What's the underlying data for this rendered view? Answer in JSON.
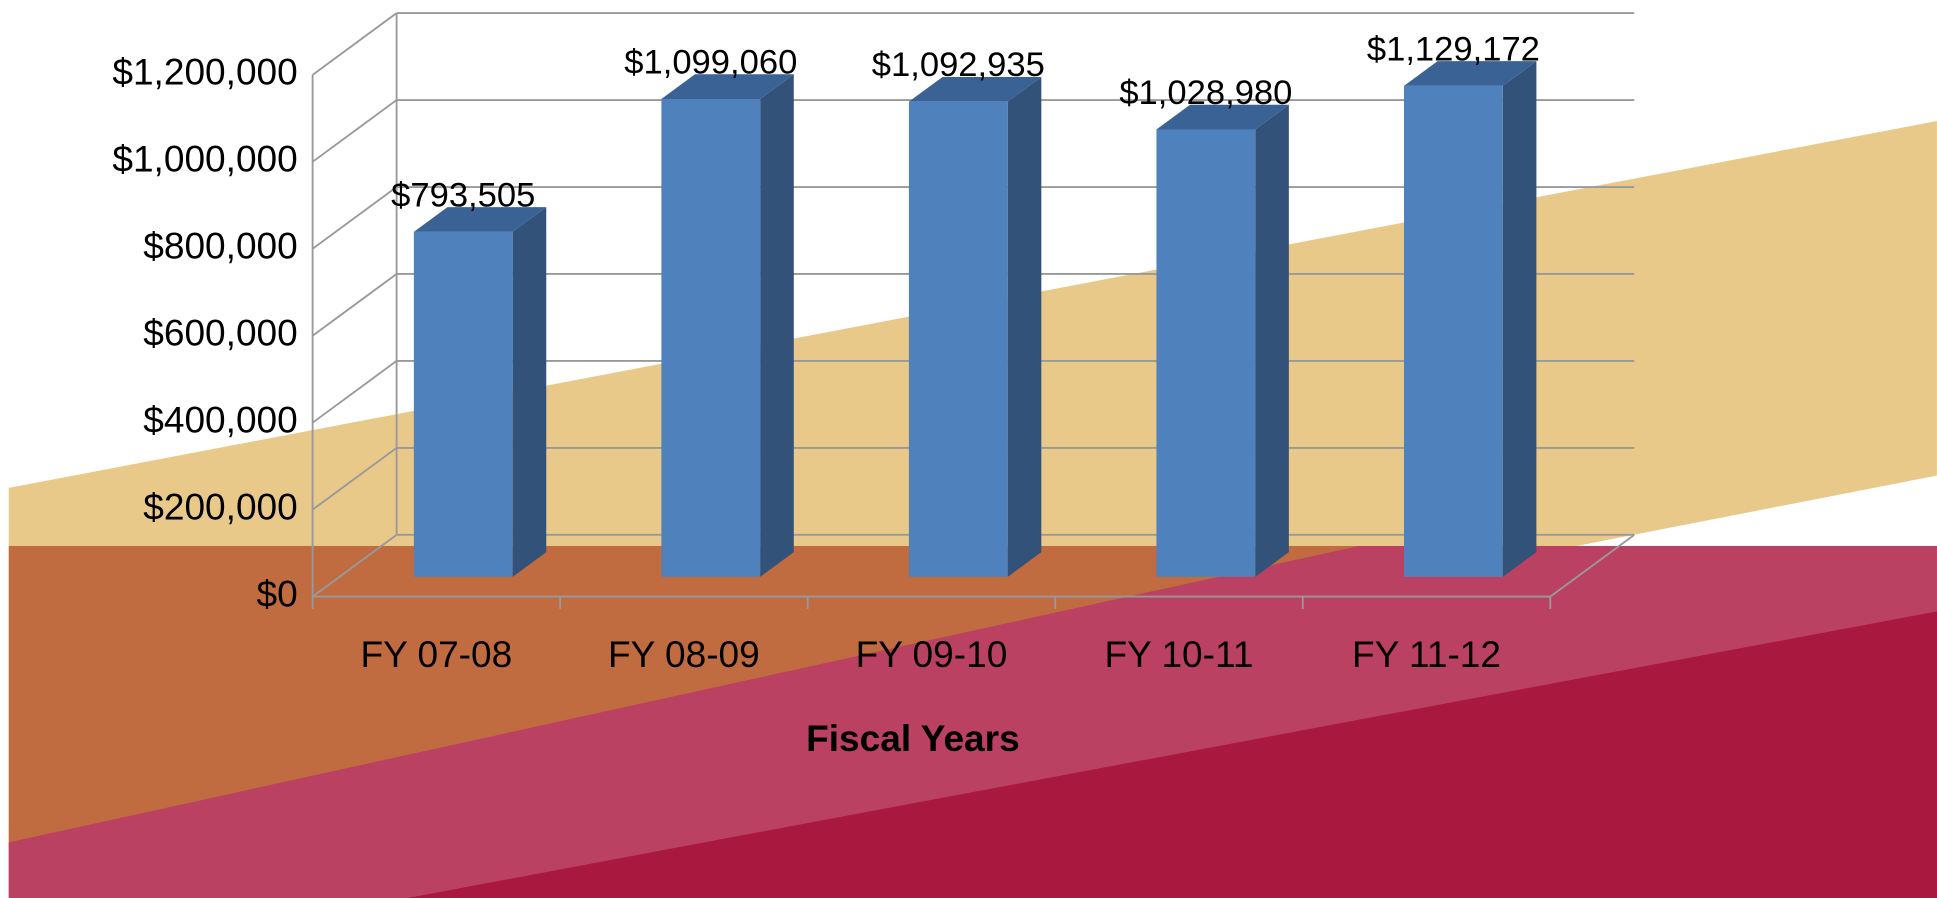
{
  "chart_data": {
    "type": "bar3d",
    "x_label": "Fiscal Years",
    "categories": [
      "FY 07-08",
      "FY 08-09",
      "FY 09-10",
      "FY 10-11",
      "FY 11-12"
    ],
    "values": [
      793505,
      1099060,
      1092935,
      1028980,
      1129172
    ],
    "value_labels": [
      "$793,505",
      "$1,099,060",
      "$1,092,935",
      "$1,028,980",
      "$1,129,172"
    ],
    "color": "#4f81bd",
    "ylim": [
      0,
      1200000
    ],
    "yticks": [
      {
        "value": 0,
        "label": "$0"
      },
      {
        "value": 200000,
        "label": "$200,000"
      },
      {
        "value": 400000,
        "label": "$400,000"
      },
      {
        "value": 600000,
        "label": "$600,000"
      },
      {
        "value": 800000,
        "label": "$800,000"
      },
      {
        "value": 1000000,
        "label": "$1,000,000"
      },
      {
        "value": 1200000,
        "label": "$1,200,000"
      }
    ],
    "grid": true
  }
}
